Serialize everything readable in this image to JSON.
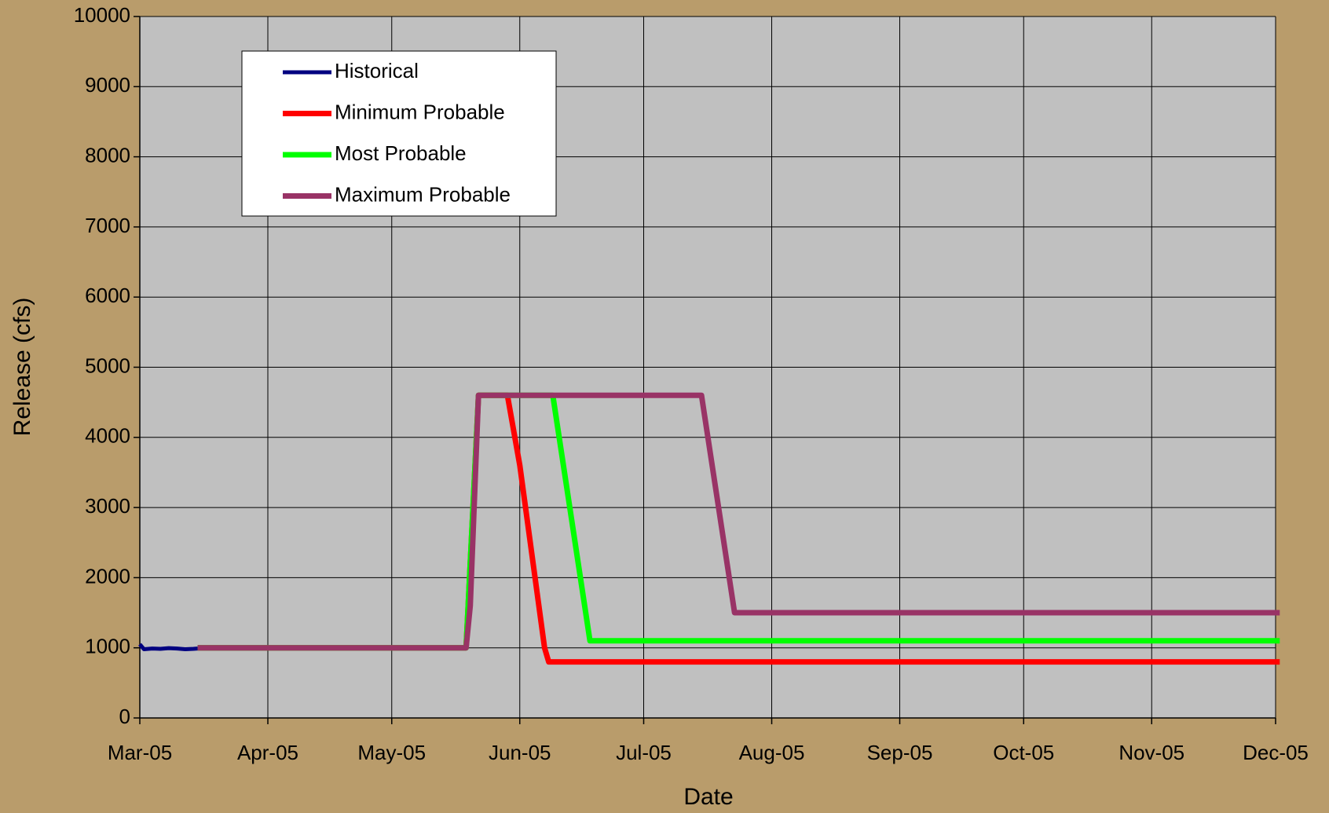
{
  "chart_data": {
    "type": "line",
    "x_label": "Date",
    "y_label": "Release (cfs)",
    "xlim": [
      "2005-03-01",
      "2005-12-01"
    ],
    "xticks": [
      {
        "value": "2005-03-01",
        "label": "Mar-05"
      },
      {
        "value": "2005-04-01",
        "label": "Apr-05"
      },
      {
        "value": "2005-05-01",
        "label": "May-05"
      },
      {
        "value": "2005-06-01",
        "label": "Jun-05"
      },
      {
        "value": "2005-07-01",
        "label": "Jul-05"
      },
      {
        "value": "2005-08-01",
        "label": "Aug-05"
      },
      {
        "value": "2005-09-01",
        "label": "Sep-05"
      },
      {
        "value": "2005-10-01",
        "label": "Oct-05"
      },
      {
        "value": "2005-11-01",
        "label": "Nov-05"
      },
      {
        "value": "2005-12-01",
        "label": "Dec-05"
      }
    ],
    "ylim": [
      0,
      10000
    ],
    "yticks": [
      0,
      1000,
      2000,
      3000,
      4000,
      5000,
      6000,
      7000,
      8000,
      9000,
      10000
    ],
    "grid": true,
    "legend": "upper left",
    "series": [
      {
        "name": "Historical",
        "color": "#000080",
        "x": [
          "2005-03-01",
          "2005-03-02",
          "2005-03-04",
          "2005-03-06",
          "2005-03-08",
          "2005-03-10",
          "2005-03-12",
          "2005-03-14",
          "2005-03-15"
        ],
        "values": [
          1050,
          980,
          990,
          985,
          995,
          990,
          980,
          985,
          990
        ]
      },
      {
        "name": "Minimum Probable",
        "color": "#ff0000",
        "x": [
          "2005-03-15",
          "2005-05-19",
          "2005-05-22",
          "2005-05-29",
          "2005-06-01",
          "2005-06-07",
          "2005-06-08",
          "2005-12-02"
        ],
        "values": [
          1000,
          1000,
          4600,
          4600,
          3600,
          1000,
          800,
          800
        ]
      },
      {
        "name": "Most Probable",
        "color": "#00ff00",
        "x": [
          "2005-03-15",
          "2005-05-19",
          "2005-05-22",
          "2005-06-09",
          "2005-06-18",
          "2005-12-02"
        ],
        "values": [
          1000,
          1000,
          4600,
          4600,
          1100,
          1100
        ]
      },
      {
        "name": "Maximum Probable",
        "color": "#993366",
        "x": [
          "2005-03-15",
          "2005-05-19",
          "2005-05-20",
          "2005-05-22",
          "2005-07-15",
          "2005-07-23",
          "2005-12-02"
        ],
        "values": [
          1000,
          1000,
          1600,
          4600,
          4600,
          1500,
          1500
        ]
      }
    ]
  }
}
